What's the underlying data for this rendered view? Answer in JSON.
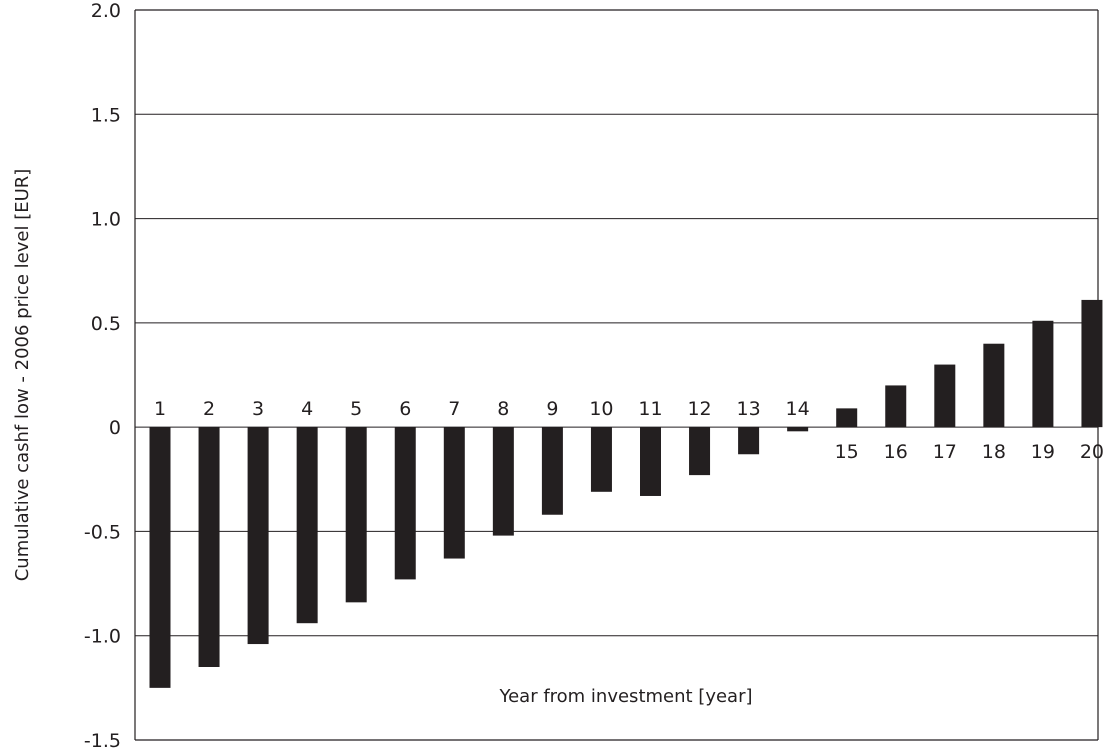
{
  "chart_data": {
    "type": "bar",
    "title": "",
    "xlabel": "Year from investment [year]",
    "ylabel": "Cumulative cashf low - 2006 price level [EUR]",
    "ylim": [
      -1.5,
      2.0
    ],
    "y_ticks": [
      2.0,
      1.5,
      1.0,
      0.5,
      0,
      -0.5,
      -1.0,
      -1.5
    ],
    "y_tick_labels": [
      "2.0",
      "1.5",
      "1.0",
      "0.5",
      "0",
      "-0.5",
      "-1.0",
      "-1.5"
    ],
    "grid": true,
    "legend": "none",
    "bar_color": "#231f20",
    "categories": [
      "1",
      "2",
      "3",
      "4",
      "5",
      "6",
      "7",
      "8",
      "9",
      "10",
      "11",
      "12",
      "13",
      "14",
      "15",
      "16",
      "17",
      "18",
      "19",
      "20"
    ],
    "values": [
      -1.25,
      -1.15,
      -1.04,
      -0.94,
      -0.84,
      -0.73,
      -0.63,
      -0.52,
      -0.42,
      -0.31,
      -0.33,
      -0.23,
      -0.13,
      -0.02,
      0.09,
      0.2,
      0.3,
      0.4,
      0.51,
      0.61
    ]
  }
}
